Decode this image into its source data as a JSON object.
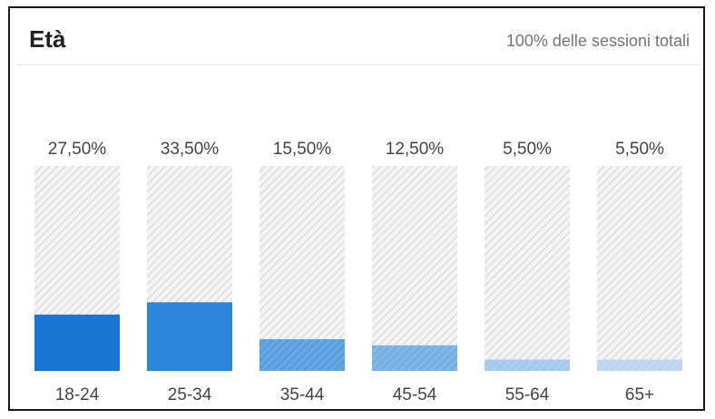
{
  "header": {
    "title": "Età",
    "subtitle": "100% delle sessioni totali"
  },
  "colors": {
    "bar_fill": [
      "#1976d2",
      "#2b86dc",
      "#5a9fe0",
      "#78b0e6",
      "#a4c8ee",
      "#bcd6f2"
    ],
    "track_stripe": "#cfcfcf",
    "track_background": "#f4f4f4"
  },
  "chart_data": {
    "type": "bar",
    "title": "Età",
    "subtitle": "100% delle sessioni totali",
    "categories": [
      "18-24",
      "25-34",
      "35-44",
      "45-54",
      "55-64",
      "65+"
    ],
    "values": [
      27.5,
      33.5,
      15.5,
      12.5,
      5.5,
      5.5
    ],
    "value_labels": [
      "27,50%",
      "33,50%",
      "15,50%",
      "12,50%",
      "5,50%",
      "5,50%"
    ],
    "ylim": [
      0,
      100
    ],
    "grid": false,
    "legend": "none"
  }
}
